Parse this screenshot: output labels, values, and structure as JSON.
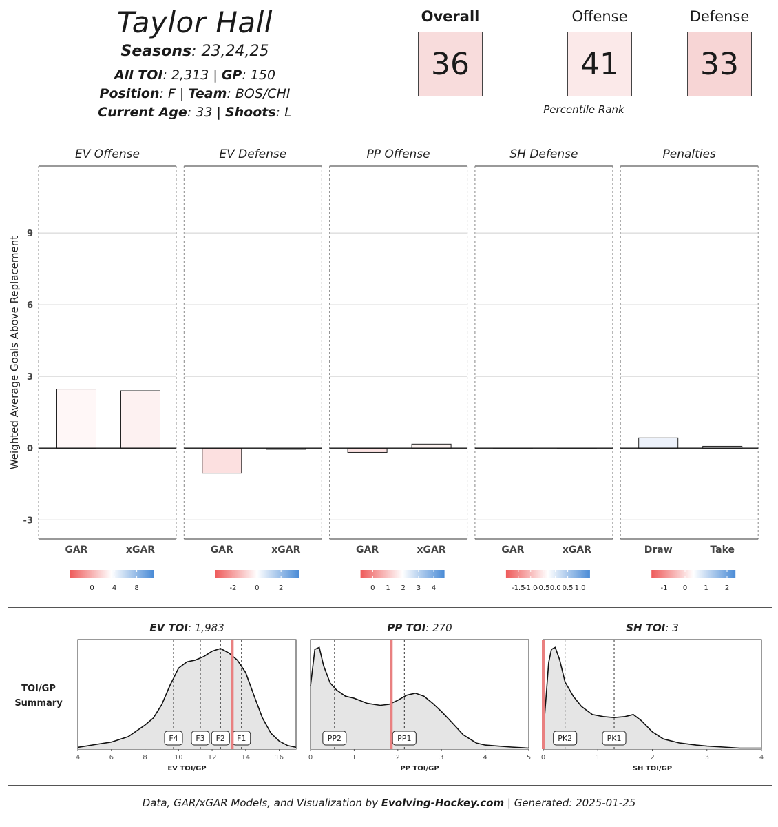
{
  "header": {
    "name": "Taylor Hall",
    "seasons_label": "Seasons",
    "seasons_value": "23,24,25",
    "toi_label": "All TOI",
    "toi_value": "2,313",
    "gp_label": "GP",
    "gp_value": "150",
    "position_label": "Position",
    "position_value": "F",
    "team_label": "Team",
    "team_value": "BOS/CHI",
    "age_label": "Current Age",
    "age_value": "33",
    "shoots_label": "Shoots",
    "shoots_value": "L"
  },
  "ranks": {
    "overall_label": "Overall",
    "overall_value": "36",
    "offense_label": "Offense",
    "offense_value": "41",
    "defense_label": "Defense",
    "defense_value": "33",
    "caption": "Percentile Rank",
    "overall_color": "#f8dcdc",
    "offense_color": "#fbe9e9",
    "defense_color": "#f7d5d5"
  },
  "chart_data": [
    {
      "type": "bar",
      "ylabel": "Weighted Average Goals Above Replacement",
      "ylim": [
        -3.8,
        11.8
      ],
      "yticks": [
        -3,
        0,
        3,
        6,
        9
      ],
      "gridlines": true,
      "facets": [
        {
          "title": "EV Offense",
          "categories": [
            "GAR",
            "xGAR"
          ],
          "values": [
            2.47,
            2.4
          ],
          "fills": [
            "#fff7f7",
            "#fdf1f1"
          ],
          "legend": {
            "ticks": [
              0,
              4,
              8
            ],
            "min": -4,
            "max": 11
          }
        },
        {
          "title": "EV Defense",
          "categories": [
            "GAR",
            "xGAR"
          ],
          "values": [
            -1.05,
            -0.05
          ],
          "fills": [
            "#fce0e0",
            "#f4f6fb"
          ],
          "legend": {
            "ticks": [
              -2,
              0,
              2
            ],
            "min": -3.5,
            "max": 3.5
          }
        },
        {
          "title": "PP Offense",
          "categories": [
            "GAR",
            "xGAR"
          ],
          "values": [
            -0.18,
            0.17
          ],
          "fills": [
            "#fbe3e3",
            "#fdf3f1"
          ],
          "legend": {
            "ticks": [
              0,
              1,
              2,
              3,
              4
            ],
            "min": -0.8,
            "max": 4.7
          }
        },
        {
          "title": "SH Defense",
          "categories": [
            "GAR",
            "xGAR"
          ],
          "values": [
            0.0,
            0.0
          ],
          "fills": [
            "#ffffff",
            "#ffffff"
          ],
          "legend": {
            "ticks": [
              -1.5,
              -1.0,
              -0.5,
              0.0,
              0.5,
              1.0
            ],
            "tick_labels": [
              "-1.5",
              "-1.0",
              "-0.5",
              "0.0",
              "0.5",
              "1.0"
            ],
            "min": -2.0,
            "max": 1.4
          }
        },
        {
          "title": "Penalties",
          "categories": [
            "Draw",
            "Take"
          ],
          "values": [
            0.43,
            0.08
          ],
          "fills": [
            "#edf2fb",
            "#fafbfd"
          ],
          "legend": {
            "ticks": [
              -1,
              0,
              1,
              2
            ],
            "min": -1.6,
            "max": 2.4
          }
        }
      ]
    },
    {
      "type": "area",
      "row_label_line1": "TOI/GP",
      "row_label_line2": "Summary",
      "panels": [
        {
          "title_label": "EV TOI",
          "title_value": "1,983",
          "xlabel": "EV TOI/GP",
          "xlim": [
            4,
            17
          ],
          "xticks": [
            4,
            6,
            8,
            10,
            12,
            14,
            16
          ],
          "x": [
            4,
            5,
            6,
            7,
            8,
            8.5,
            9,
            9.5,
            10,
            10.5,
            11,
            11.5,
            12,
            12.5,
            13,
            13.5,
            14,
            14.5,
            15,
            15.5,
            16,
            16.5,
            17
          ],
          "y": [
            0.02,
            0.05,
            0.08,
            0.14,
            0.27,
            0.35,
            0.5,
            0.72,
            0.91,
            0.98,
            1.0,
            1.04,
            1.1,
            1.13,
            1.08,
            1.0,
            0.86,
            0.6,
            0.35,
            0.18,
            0.09,
            0.04,
            0.02
          ],
          "ymax": 1.2,
          "player_value": 13.2,
          "markers": [
            {
              "label": "F4",
              "x": 9.7
            },
            {
              "label": "F3",
              "x": 11.3
            },
            {
              "label": "F2",
              "x": 12.5
            },
            {
              "label": "F1",
              "x": 13.75
            }
          ]
        },
        {
          "title_label": "PP TOI",
          "title_value": "270",
          "xlabel": "PP TOI/GP",
          "xlim": [
            0,
            5
          ],
          "xticks": [
            0,
            1,
            2,
            3,
            4,
            5
          ],
          "x": [
            0,
            0.1,
            0.2,
            0.3,
            0.45,
            0.6,
            0.8,
            1.0,
            1.3,
            1.6,
            1.8,
            2.0,
            2.2,
            2.4,
            2.6,
            2.8,
            3.0,
            3.2,
            3.5,
            3.8,
            4.0,
            4.3,
            4.6,
            5.0
          ],
          "y": [
            0.62,
            0.98,
            1.0,
            0.82,
            0.65,
            0.58,
            0.52,
            0.5,
            0.45,
            0.43,
            0.44,
            0.48,
            0.53,
            0.55,
            0.52,
            0.45,
            0.37,
            0.28,
            0.14,
            0.06,
            0.04,
            0.03,
            0.02,
            0.01
          ],
          "ymax": 1.05,
          "player_value": 1.85,
          "markers": [
            {
              "label": "PP2",
              "x": 0.55
            },
            {
              "label": "PP1",
              "x": 2.15
            }
          ]
        },
        {
          "title_label": "SH TOI",
          "title_value": "3",
          "xlabel": "SH TOI/GP",
          "xlim": [
            0,
            4
          ],
          "xticks": [
            0,
            1,
            2,
            3,
            4
          ],
          "x": [
            0,
            0.05,
            0.1,
            0.15,
            0.22,
            0.3,
            0.4,
            0.55,
            0.7,
            0.9,
            1.1,
            1.3,
            1.5,
            1.65,
            1.8,
            2.0,
            2.2,
            2.5,
            2.8,
            3.0,
            3.3,
            3.6,
            4.0
          ],
          "y": [
            0.15,
            0.5,
            0.85,
            0.98,
            1.0,
            0.88,
            0.66,
            0.52,
            0.42,
            0.34,
            0.32,
            0.31,
            0.32,
            0.34,
            0.28,
            0.17,
            0.1,
            0.06,
            0.04,
            0.03,
            0.02,
            0.01,
            0.01
          ],
          "ymax": 1.05,
          "player_value": 0.0,
          "markers": [
            {
              "label": "PK2",
              "x": 0.4
            },
            {
              "label": "PK1",
              "x": 1.3
            }
          ]
        }
      ]
    }
  ],
  "footer": {
    "prefix": "Data, GAR/xGAR Models, and Visualization by ",
    "brand": "Evolving-Hockey.com",
    "suffix": " | Generated: 2025-01-25"
  },
  "colors": {
    "neg": "#ee5a5a",
    "pos": "#4a8bd6",
    "player_line": "#e98080",
    "area_fill": "#e5e5e5"
  }
}
